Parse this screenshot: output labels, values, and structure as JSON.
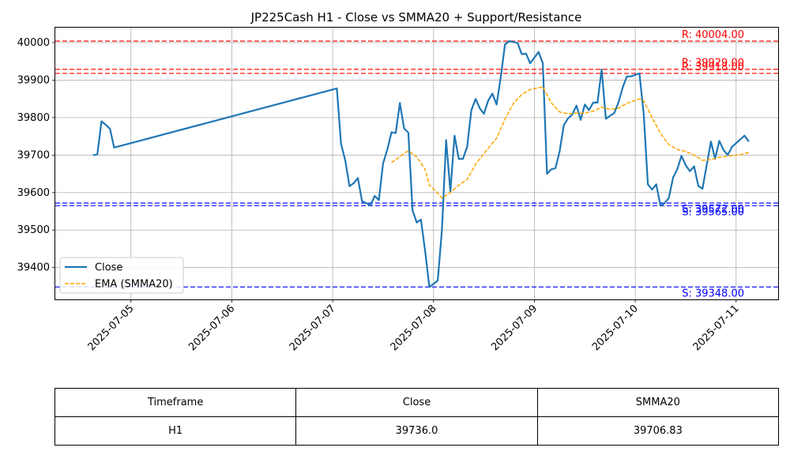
{
  "chart_data": {
    "type": "line",
    "title": "JP225Cash H1 - Close vs SMMA20 + Support/Resistance",
    "xlabel": "",
    "ylabel": "",
    "x_ticks": [
      "2025-07-05",
      "2025-07-06",
      "2025-07-07",
      "2025-07-08",
      "2025-07-09",
      "2025-07-10",
      "2025-07-11"
    ],
    "y_ticks": [
      39400,
      39500,
      39600,
      39700,
      39800,
      39900,
      40000
    ],
    "xlim": [
      "2025-07-04 06:00",
      "2025-07-11 10:00"
    ],
    "ylim": [
      39315,
      40040
    ],
    "grid": true,
    "legend_position": "lower-left",
    "series": [
      {
        "name": "Close",
        "color": "#1f77b4",
        "style": "solid",
        "points": [
          [
            "2025-07-04 15:00",
            39700
          ],
          [
            "2025-07-04 16:00",
            39702
          ],
          [
            "2025-07-04 17:00",
            39790
          ],
          [
            "2025-07-04 18:00",
            39781
          ],
          [
            "2025-07-04 19:00",
            39770
          ],
          [
            "2025-07-04 20:00",
            39720
          ],
          [
            "2025-07-07 01:00",
            39878
          ],
          [
            "2025-07-07 02:00",
            39730
          ],
          [
            "2025-07-07 03:00",
            39685
          ],
          [
            "2025-07-07 04:00",
            39617
          ],
          [
            "2025-07-07 05:00",
            39625
          ],
          [
            "2025-07-07 06:00",
            39639
          ],
          [
            "2025-07-07 07:00",
            39577
          ],
          [
            "2025-07-07 08:00",
            39572
          ],
          [
            "2025-07-07 09:00",
            39566
          ],
          [
            "2025-07-07 10:00",
            39591
          ],
          [
            "2025-07-07 11:00",
            39580
          ],
          [
            "2025-07-07 12:00",
            39678
          ],
          [
            "2025-07-07 13:00",
            39715
          ],
          [
            "2025-07-07 14:00",
            39761
          ],
          [
            "2025-07-07 15:00",
            39759
          ],
          [
            "2025-07-07 16:00",
            39839
          ],
          [
            "2025-07-07 17:00",
            39771
          ],
          [
            "2025-07-07 18:00",
            39760
          ],
          [
            "2025-07-07 19:00",
            39553
          ],
          [
            "2025-07-07 20:00",
            39520
          ],
          [
            "2025-07-07 21:00",
            39528
          ],
          [
            "2025-07-07 22:00",
            39445
          ],
          [
            "2025-07-07 23:00",
            39348
          ],
          [
            "2025-07-08 01:00",
            39365
          ],
          [
            "2025-07-08 02:00",
            39500
          ],
          [
            "2025-07-08 03:00",
            39740
          ],
          [
            "2025-07-08 04:00",
            39603
          ],
          [
            "2025-07-08 05:00",
            39752
          ],
          [
            "2025-07-08 06:00",
            39690
          ],
          [
            "2025-07-08 07:00",
            39690
          ],
          [
            "2025-07-08 08:00",
            39722
          ],
          [
            "2025-07-08 09:00",
            39820
          ],
          [
            "2025-07-08 10:00",
            39850
          ],
          [
            "2025-07-08 11:00",
            39825
          ],
          [
            "2025-07-08 12:00",
            39810
          ],
          [
            "2025-07-08 13:00",
            39845
          ],
          [
            "2025-07-08 14:00",
            39864
          ],
          [
            "2025-07-08 15:00",
            39835
          ],
          [
            "2025-07-08 16:00",
            39908
          ],
          [
            "2025-07-08 17:00",
            39995
          ],
          [
            "2025-07-08 18:00",
            40004
          ],
          [
            "2025-07-08 19:00",
            40002
          ],
          [
            "2025-07-08 20:00",
            39999
          ],
          [
            "2025-07-08 21:00",
            39969
          ],
          [
            "2025-07-08 22:00",
            39971
          ],
          [
            "2025-07-08 23:00",
            39945
          ],
          [
            "2025-07-09 01:00",
            39975
          ],
          [
            "2025-07-09 02:00",
            39945
          ],
          [
            "2025-07-09 03:00",
            39650
          ],
          [
            "2025-07-09 04:00",
            39662
          ],
          [
            "2025-07-09 05:00",
            39665
          ],
          [
            "2025-07-09 06:00",
            39710
          ],
          [
            "2025-07-09 07:00",
            39780
          ],
          [
            "2025-07-09 08:00",
            39798
          ],
          [
            "2025-07-09 09:00",
            39808
          ],
          [
            "2025-07-09 10:00",
            39832
          ],
          [
            "2025-07-09 11:00",
            39794
          ],
          [
            "2025-07-09 12:00",
            39835
          ],
          [
            "2025-07-09 13:00",
            39820
          ],
          [
            "2025-07-09 14:00",
            39840
          ],
          [
            "2025-07-09 15:00",
            39840
          ],
          [
            "2025-07-09 16:00",
            39929
          ],
          [
            "2025-07-09 17:00",
            39797
          ],
          [
            "2025-07-09 18:00",
            39805
          ],
          [
            "2025-07-09 19:00",
            39812
          ],
          [
            "2025-07-09 20:00",
            39840
          ],
          [
            "2025-07-09 21:00",
            39880
          ],
          [
            "2025-07-09 22:00",
            39910
          ],
          [
            "2025-07-09 23:00",
            39910
          ],
          [
            "2025-07-10 01:00",
            39918
          ],
          [
            "2025-07-10 02:00",
            39810
          ],
          [
            "2025-07-10 03:00",
            39622
          ],
          [
            "2025-07-10 04:00",
            39608
          ],
          [
            "2025-07-10 05:00",
            39622
          ],
          [
            "2025-07-10 06:00",
            39565
          ],
          [
            "2025-07-10 07:00",
            39572
          ],
          [
            "2025-07-10 08:00",
            39586
          ],
          [
            "2025-07-10 09:00",
            39640
          ],
          [
            "2025-07-10 10:00",
            39662
          ],
          [
            "2025-07-10 11:00",
            39698
          ],
          [
            "2025-07-10 12:00",
            39673
          ],
          [
            "2025-07-10 13:00",
            39657
          ],
          [
            "2025-07-10 14:00",
            39670
          ],
          [
            "2025-07-10 15:00",
            39618
          ],
          [
            "2025-07-10 16:00",
            39610
          ],
          [
            "2025-07-10 17:00",
            39674
          ],
          [
            "2025-07-10 18:00",
            39736
          ],
          [
            "2025-07-10 19:00",
            39690
          ],
          [
            "2025-07-10 20:00",
            39738
          ],
          [
            "2025-07-10 21:00",
            39714
          ],
          [
            "2025-07-10 22:00",
            39700
          ],
          [
            "2025-07-10 23:00",
            39722
          ],
          [
            "2025-07-11 01:00",
            39742
          ],
          [
            "2025-07-11 02:00",
            39752
          ],
          [
            "2025-07-11 03:00",
            39736
          ]
        ]
      },
      {
        "name": "EMA (SMMA20)",
        "color": "#ffa500",
        "style": "dashed",
        "points": [
          [
            "2025-07-07 14:00",
            39680
          ],
          [
            "2025-07-07 16:00",
            39696
          ],
          [
            "2025-07-07 18:00",
            39712
          ],
          [
            "2025-07-07 20:00",
            39695
          ],
          [
            "2025-07-07 22:00",
            39662
          ],
          [
            "2025-07-07 23:00",
            39620
          ],
          [
            "2025-07-08 01:00",
            39598
          ],
          [
            "2025-07-08 02:00",
            39585
          ],
          [
            "2025-07-08 04:00",
            39600
          ],
          [
            "2025-07-08 06:00",
            39620
          ],
          [
            "2025-07-08 08:00",
            39635
          ],
          [
            "2025-07-08 10:00",
            39676
          ],
          [
            "2025-07-08 13:00",
            39718
          ],
          [
            "2025-07-08 15:00",
            39745
          ],
          [
            "2025-07-08 17:00",
            39796
          ],
          [
            "2025-07-08 19:00",
            39838
          ],
          [
            "2025-07-08 21:00",
            39862
          ],
          [
            "2025-07-08 23:00",
            39875
          ],
          [
            "2025-07-09 02:00",
            39882
          ],
          [
            "2025-07-09 04:00",
            39840
          ],
          [
            "2025-07-09 06:00",
            39815
          ],
          [
            "2025-07-09 08:00",
            39810
          ],
          [
            "2025-07-09 10:00",
            39812
          ],
          [
            "2025-07-09 12:00",
            39812
          ],
          [
            "2025-07-09 14:00",
            39817
          ],
          [
            "2025-07-09 16:00",
            39828
          ],
          [
            "2025-07-09 18:00",
            39822
          ],
          [
            "2025-07-09 20:00",
            39825
          ],
          [
            "2025-07-09 22:00",
            39838
          ],
          [
            "2025-07-10 01:00",
            39850
          ],
          [
            "2025-07-10 02:00",
            39845
          ],
          [
            "2025-07-10 04:00",
            39800
          ],
          [
            "2025-07-10 06:00",
            39758
          ],
          [
            "2025-07-10 08:00",
            39728
          ],
          [
            "2025-07-10 10:00",
            39715
          ],
          [
            "2025-07-10 12:00",
            39710
          ],
          [
            "2025-07-10 14:00",
            39700
          ],
          [
            "2025-07-10 16:00",
            39686
          ],
          [
            "2025-07-10 18:00",
            39688
          ],
          [
            "2025-07-10 20:00",
            39694
          ],
          [
            "2025-07-10 22:00",
            39697
          ],
          [
            "2025-07-11 01:00",
            39701
          ],
          [
            "2025-07-11 03:00",
            39707
          ]
        ]
      }
    ],
    "levels": [
      {
        "kind": "resistance",
        "value": 40004,
        "label": "R: 40004.00",
        "color": "#ff0000",
        "style": "dashed"
      },
      {
        "kind": "resistance",
        "value": 39929,
        "label": "R: 39929.00",
        "color": "#ff0000",
        "style": "dashed"
      },
      {
        "kind": "resistance",
        "value": 39918,
        "label": "R: 39918.00",
        "color": "#ff0000",
        "style": "dashed"
      },
      {
        "kind": "support",
        "value": 39572,
        "label": "S: 39572.00",
        "color": "#0000ff",
        "style": "dashed"
      },
      {
        "kind": "support",
        "value": 39565,
        "label": "S: 39565.00",
        "color": "#0000ff",
        "style": "dashed"
      },
      {
        "kind": "support",
        "value": 39348,
        "label": "S: 39348.00",
        "color": "#0000ff",
        "style": "dashed"
      }
    ]
  },
  "summary_table": {
    "headers": [
      "Timeframe",
      "Close",
      "SMMA20"
    ],
    "rows": [
      [
        "H1",
        "39736.0",
        "39706.83"
      ]
    ]
  }
}
